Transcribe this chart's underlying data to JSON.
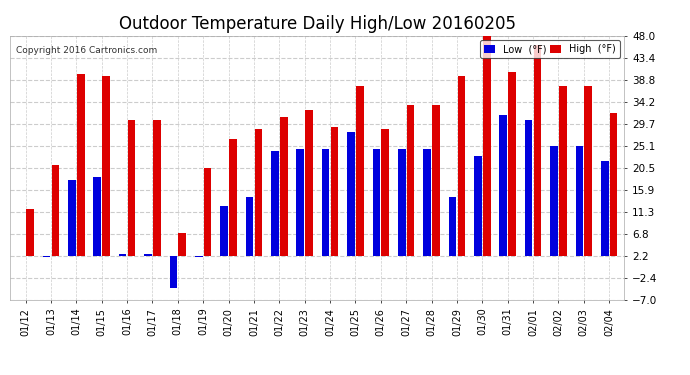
{
  "title": "Outdoor Temperature Daily High/Low 20160205",
  "copyright": "Copyright 2016 Cartronics.com",
  "dates": [
    "01/12",
    "01/13",
    "01/14",
    "01/15",
    "01/16",
    "01/17",
    "01/18",
    "01/19",
    "01/20",
    "01/21",
    "01/22",
    "01/23",
    "01/24",
    "01/25",
    "01/26",
    "01/27",
    "01/28",
    "01/29",
    "01/30",
    "01/31",
    "02/01",
    "02/02",
    "02/03",
    "02/04"
  ],
  "highs": [
    12.0,
    21.0,
    40.0,
    39.5,
    30.5,
    30.5,
    7.0,
    20.5,
    26.5,
    28.5,
    31.0,
    32.5,
    29.0,
    37.5,
    28.5,
    33.5,
    33.5,
    39.5,
    48.0,
    40.5,
    46.0,
    37.5,
    37.5,
    32.0
  ],
  "lows": [
    2.2,
    2.0,
    18.0,
    18.5,
    2.5,
    2.5,
    -4.5,
    2.0,
    12.5,
    14.5,
    24.0,
    24.5,
    24.5,
    28.0,
    24.5,
    24.5,
    24.5,
    14.5,
    23.0,
    31.5,
    30.5,
    25.0,
    25.0,
    22.0
  ],
  "low_color": "#0000dd",
  "high_color": "#dd0000",
  "bg_color": "#ffffff",
  "plot_bg_color": "#ffffff",
  "grid_color": "#cccccc",
  "yticks": [
    -7.0,
    -2.4,
    2.2,
    6.8,
    11.3,
    15.9,
    20.5,
    25.1,
    29.7,
    34.2,
    38.8,
    43.4,
    48.0
  ],
  "ylim": [
    -7.0,
    48.0
  ],
  "baseline": 2.2,
  "title_fontsize": 12,
  "legend_low_label": "Low  (°F)",
  "legend_high_label": "High  (°F)"
}
